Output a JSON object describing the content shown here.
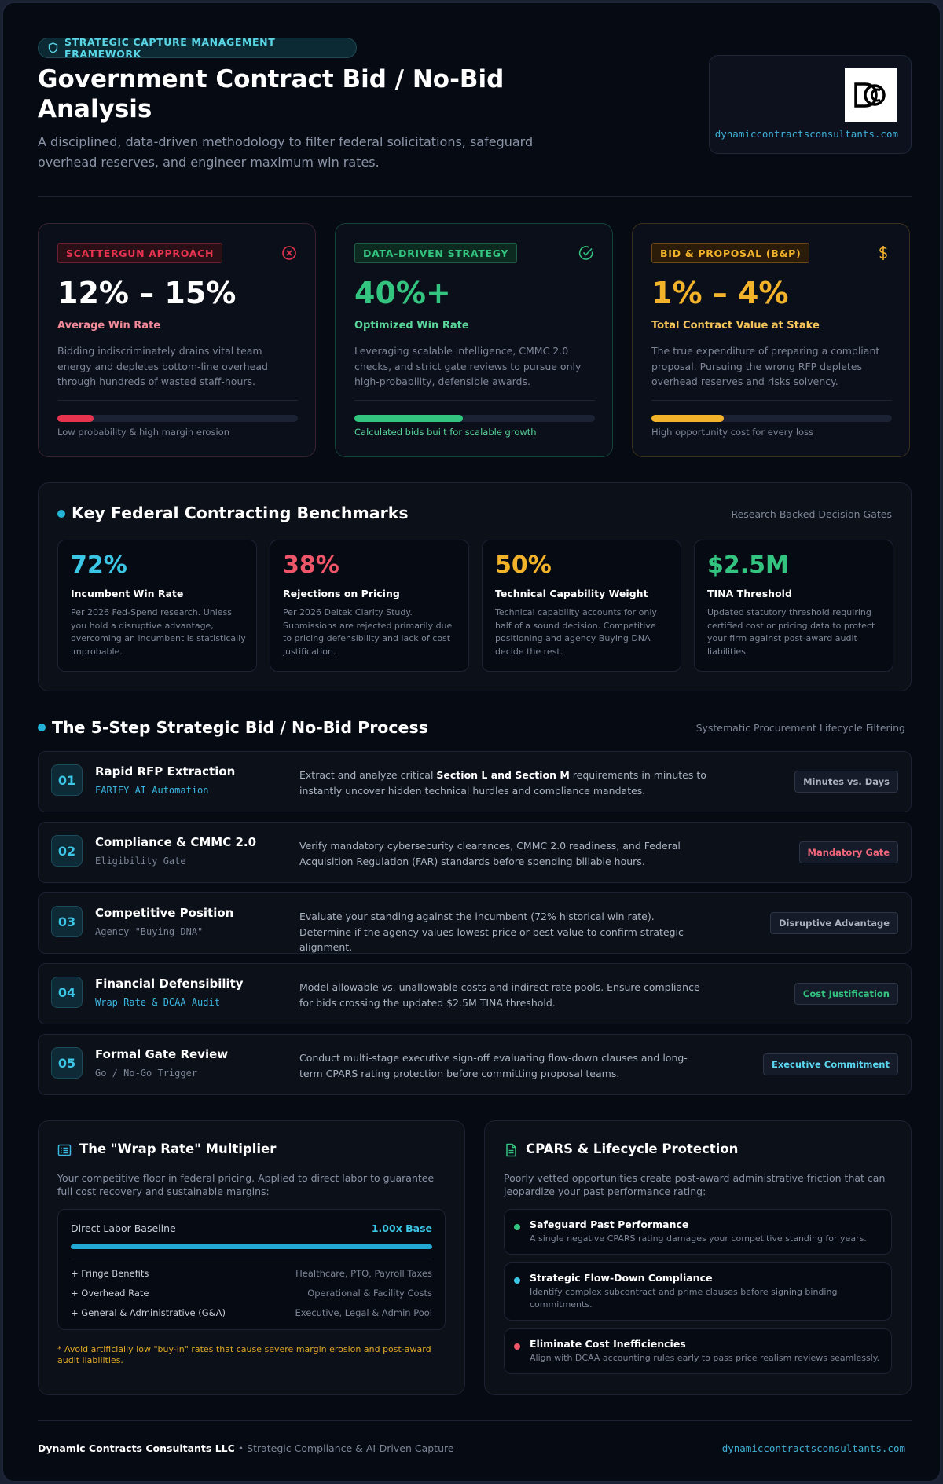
{
  "header": {
    "badge": "STRATEGIC CAPTURE MANAGEMENT FRAMEWORK",
    "title": "Government Contract Bid / No-Bid Analysis",
    "subtitle": "A disciplined, data-driven methodology to filter federal solicitations, safeguard overhead reserves, and engineer maximum win rates.",
    "logo_url": "dynamiccontractsconsultants.com"
  },
  "stats": [
    {
      "tag": "SCATTERGUN APPROACH",
      "value": "12% – 15%",
      "label": "Average Win Rate",
      "desc": "Bidding indiscriminately drains vital team energy and depletes bottom-line overhead through hundreds of wasted staff-hours.",
      "progress": 0.15,
      "footer": "Low probability & high margin erosion",
      "color": "#e8334f",
      "icon": "x-circle-icon"
    },
    {
      "tag": "DATA-DRIVEN STRATEGY",
      "value": "40%+",
      "label": "Optimized Win Rate",
      "desc": "Leveraging scalable intelligence, CMMC 2.0 checks, and strict gate reviews to pursue only high-probability, defensible awards.",
      "progress": 0.45,
      "footer": "Calculated bids built for scalable growth",
      "color": "#33c47f",
      "icon": "check-circle-icon"
    },
    {
      "tag": "BID & PROPOSAL (B&P)",
      "value": "1% – 4%",
      "label": "Total Contract Value at Stake",
      "desc": "The true expenditure of preparing a compliant proposal. Pursuing the wrong RFP depletes overhead reserves and risks solvency.",
      "progress": 0.3,
      "footer": "High opportunity cost for every loss",
      "color": "#f2b22a",
      "icon": "dollar-icon"
    }
  ],
  "benchmarks": {
    "title": "Key Federal Contracting Benchmarks",
    "right": "Research-Backed Decision Gates",
    "items": [
      {
        "value": "72%",
        "label": "Incumbent Win Rate",
        "desc": "Per 2026 Fed-Spend research. Unless you hold a disruptive advantage, overcoming an incumbent is statistically improbable.",
        "color": "#3cc6e6"
      },
      {
        "value": "38%",
        "label": "Rejections on Pricing",
        "desc": "Per 2026 Deltek Clarity Study. Submissions are rejected primarily due to pricing defensibility and lack of cost justification.",
        "color": "#f0566a"
      },
      {
        "value": "50%",
        "label": "Technical Capability Weight",
        "desc": "Technical capability accounts for only half of a sound decision. Competitive positioning and agency Buying DNA decide the rest.",
        "color": "#f2b22a"
      },
      {
        "value": "$2.5M",
        "label": "TINA Threshold",
        "desc": "Updated statutory threshold requiring certified cost or pricing data to protect your firm against post-award audit liabilities.",
        "color": "#33c47f"
      }
    ]
  },
  "process": {
    "title": "The 5-Step Strategic Bid / No-Bid Process",
    "right": "Systematic Procurement Lifecycle Filtering",
    "steps": [
      {
        "num": "01",
        "name": "Rapid RFP Extraction",
        "sub": "FARIFY AI Automation",
        "sub_color": "#3cb8e0",
        "desc_pre": "Extract and analyze critical ",
        "desc_bold": "Section L and Section M",
        "desc_post": " requirements in minutes to instantly uncover hidden technical hurdles and compliance mandates.",
        "badge": "Minutes vs. Days",
        "badge_color": "#aab2c0"
      },
      {
        "num": "02",
        "name": "Compliance & CMMC 2.0",
        "sub": "Eligibility Gate",
        "sub_color": "#7d8597",
        "desc_pre": "Verify mandatory cybersecurity clearances, CMMC 2.0 readiness, and Federal Acquisition Regulation (FAR) standards before spending billable hours.",
        "desc_bold": "",
        "desc_post": "",
        "badge": "Mandatory Gate",
        "badge_color": "#f0667a"
      },
      {
        "num": "03",
        "name": "Competitive Position",
        "sub": "Agency \"Buying DNA\"",
        "sub_color": "#7d8597",
        "desc_pre": "Evaluate your standing against the incumbent (72% historical win rate). Determine if the agency values lowest price or best value to confirm strategic alignment.",
        "desc_bold": "",
        "desc_post": "",
        "badge": "Disruptive Advantage",
        "badge_color": "#aab2c0"
      },
      {
        "num": "04",
        "name": "Financial Defensibility",
        "sub": "Wrap Rate & DCAA Audit",
        "sub_color": "#3cb8e0",
        "desc_pre": "Model allowable vs. unallowable costs and indirect rate pools. Ensure compliance for bids crossing the updated $2.5M TINA threshold.",
        "desc_bold": "",
        "desc_post": "",
        "badge": "Cost Justification",
        "badge_color": "#33c47f"
      },
      {
        "num": "05",
        "name": "Formal Gate Review",
        "sub": "Go / No-Go Trigger",
        "sub_color": "#7d8597",
        "desc_pre": "Conduct multi-stage executive sign-off evaluating flow-down clauses and long-term CPARS rating protection before committing proposal teams.",
        "desc_bold": "",
        "desc_post": "",
        "badge": "Executive Commitment",
        "badge_color": "#5ad6f0"
      }
    ]
  },
  "wrap_rate": {
    "title": "The \"Wrap Rate\" Multiplier",
    "desc": "Your competitive floor in federal pricing. Applied to direct labor to guarantee full cost recovery and sustainable margins:",
    "base_label": "Direct Labor Baseline",
    "base_value": "1.00x Base",
    "rows": [
      {
        "label": "+ Fringe Benefits",
        "value": "Healthcare, PTO, Payroll Taxes"
      },
      {
        "label": "+ Overhead Rate",
        "value": "Operational & Facility Costs"
      },
      {
        "label": "+ General & Administrative (G&A)",
        "value": "Executive, Legal & Admin Pool"
      }
    ],
    "note": "* Avoid artificially low \"buy-in\" rates that cause severe margin erosion and post-award audit liabilities."
  },
  "cpars": {
    "title": "CPARS & Lifecycle Protection",
    "desc": "Poorly vetted opportunities create post-award administrative friction that can jeopardize your past performance rating:",
    "items": [
      {
        "title": "Safeguard Past Performance",
        "desc": "A single negative CPARS rating damages your competitive standing for years.",
        "color": "#33c47f"
      },
      {
        "title": "Strategic Flow-Down Compliance",
        "desc": "Identify complex subcontract and prime clauses before signing binding commitments.",
        "color": "#3cc6e6"
      },
      {
        "title": "Eliminate Cost Inefficiencies",
        "desc": "Align with DCAA accounting rules early to pass price realism reviews seamlessly.",
        "color": "#f0566a"
      }
    ]
  },
  "footer": {
    "company": "Dynamic Contracts Consultants LLC",
    "tagline": " • Strategic Compliance & AI-Driven Capture",
    "url": "dynamiccontractsconsultants.com"
  }
}
